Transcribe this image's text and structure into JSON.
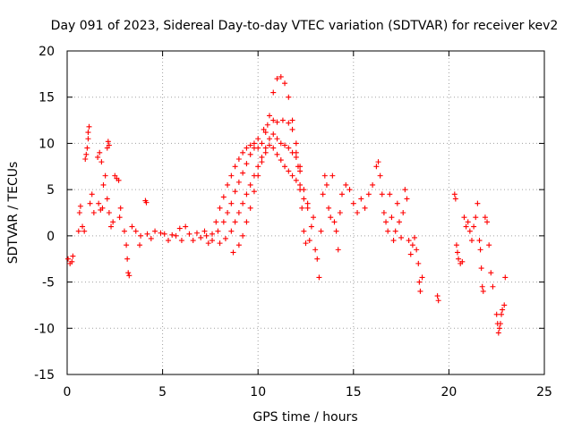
{
  "chart_data": {
    "type": "scatter",
    "title": "Day 091 of 2023, Sidereal Day-to-day VTEC variation (SDTVAR) for receiver kev2",
    "xlabel": "GPS time / hours",
    "ylabel": "SDTVAR / TECUs",
    "xlim": [
      0,
      25
    ],
    "ylim": [
      -15,
      20
    ],
    "xticks": [
      0,
      5,
      10,
      15,
      20,
      25
    ],
    "yticks": [
      -15,
      -10,
      -5,
      0,
      5,
      10,
      15,
      20
    ],
    "xtick_labels": [
      "0",
      "5",
      "10",
      "15",
      "20",
      "25"
    ],
    "ytick_labels": [
      "-15",
      "-10",
      "-5",
      "0",
      "5",
      "10",
      "15",
      "20"
    ],
    "grid": true,
    "marker": "plus",
    "color": "#ff0000",
    "series": [
      {
        "name": "SDTVAR",
        "points": [
          [
            0.05,
            -2.5
          ],
          [
            0.15,
            -3.0
          ],
          [
            0.25,
            -2.8
          ],
          [
            0.3,
            -2.2
          ],
          [
            0.6,
            0.5
          ],
          [
            0.65,
            2.5
          ],
          [
            0.7,
            3.2
          ],
          [
            0.8,
            1.0
          ],
          [
            0.9,
            0.5
          ],
          [
            0.95,
            8.3
          ],
          [
            1.0,
            8.8
          ],
          [
            1.05,
            9.5
          ],
          [
            1.1,
            11.2
          ],
          [
            1.15,
            11.8
          ],
          [
            1.1,
            10.5
          ],
          [
            1.2,
            3.5
          ],
          [
            1.3,
            4.5
          ],
          [
            1.4,
            2.5
          ],
          [
            1.6,
            8.5
          ],
          [
            1.7,
            9.0
          ],
          [
            1.8,
            8.0
          ],
          [
            1.65,
            3.5
          ],
          [
            1.75,
            2.8
          ],
          [
            1.85,
            3.0
          ],
          [
            1.9,
            5.5
          ],
          [
            2.0,
            6.5
          ],
          [
            2.1,
            9.5
          ],
          [
            2.15,
            10.2
          ],
          [
            2.2,
            9.8
          ],
          [
            2.1,
            4.0
          ],
          [
            2.2,
            2.5
          ],
          [
            2.3,
            1.0
          ],
          [
            2.4,
            1.5
          ],
          [
            2.5,
            6.5
          ],
          [
            2.6,
            6.2
          ],
          [
            2.7,
            6.0
          ],
          [
            2.75,
            2.0
          ],
          [
            2.8,
            3.0
          ],
          [
            3.0,
            0.5
          ],
          [
            3.1,
            -1.0
          ],
          [
            3.15,
            -2.5
          ],
          [
            3.2,
            -4.0
          ],
          [
            3.25,
            -4.3
          ],
          [
            3.4,
            1.0
          ],
          [
            3.6,
            0.5
          ],
          [
            3.8,
            -1.0
          ],
          [
            3.85,
            0.0
          ],
          [
            4.1,
            3.8
          ],
          [
            4.15,
            3.6
          ],
          [
            4.2,
            0.2
          ],
          [
            4.4,
            -0.3
          ],
          [
            4.6,
            0.5
          ],
          [
            4.9,
            0.3
          ],
          [
            5.1,
            0.2
          ],
          [
            5.3,
            -0.5
          ],
          [
            5.5,
            0.1
          ],
          [
            5.7,
            0.0
          ],
          [
            5.9,
            0.8
          ],
          [
            6.0,
            -0.5
          ],
          [
            6.2,
            1.0
          ],
          [
            6.4,
            0.2
          ],
          [
            6.6,
            -0.5
          ],
          [
            6.8,
            0.3
          ],
          [
            7.0,
            -0.2
          ],
          [
            7.2,
            0.5
          ],
          [
            7.4,
            -0.8
          ],
          [
            7.6,
            0.2
          ],
          [
            7.8,
            1.5
          ],
          [
            8.0,
            3.0
          ],
          [
            8.2,
            4.2
          ],
          [
            8.4,
            5.5
          ],
          [
            8.6,
            6.5
          ],
          [
            8.8,
            7.5
          ],
          [
            9.0,
            8.3
          ],
          [
            9.2,
            9.0
          ],
          [
            9.4,
            9.5
          ],
          [
            9.6,
            9.8
          ],
          [
            9.8,
            10.0
          ],
          [
            10.0,
            9.5
          ],
          [
            10.2,
            10.0
          ],
          [
            10.4,
            11.2
          ],
          [
            10.6,
            13.0
          ],
          [
            10.8,
            15.5
          ],
          [
            11.0,
            17.0
          ],
          [
            11.2,
            17.2
          ],
          [
            11.4,
            16.5
          ],
          [
            11.6,
            15.0
          ],
          [
            11.8,
            12.5
          ],
          [
            12.0,
            10.0
          ],
          [
            12.1,
            7.5
          ],
          [
            12.2,
            5.0
          ],
          [
            12.3,
            3.0
          ],
          [
            12.4,
            0.5
          ],
          [
            12.5,
            -0.8
          ],
          [
            7.3,
            0.0
          ],
          [
            7.6,
            -0.5
          ],
          [
            7.9,
            0.5
          ],
          [
            8.2,
            1.5
          ],
          [
            8.4,
            2.5
          ],
          [
            8.6,
            3.5
          ],
          [
            8.8,
            4.8
          ],
          [
            9.0,
            5.8
          ],
          [
            9.2,
            6.8
          ],
          [
            9.4,
            7.8
          ],
          [
            9.6,
            8.8
          ],
          [
            9.8,
            9.5
          ],
          [
            10.0,
            10.5
          ],
          [
            10.3,
            11.5
          ],
          [
            10.5,
            12.0
          ],
          [
            10.8,
            12.5
          ],
          [
            11.0,
            12.3
          ],
          [
            11.3,
            12.5
          ],
          [
            11.6,
            12.2
          ],
          [
            11.8,
            11.5
          ],
          [
            12.0,
            9.0
          ],
          [
            12.2,
            7.0
          ],
          [
            12.4,
            5.0
          ],
          [
            12.6,
            3.5
          ],
          [
            8.0,
            -0.8
          ],
          [
            8.3,
            -0.3
          ],
          [
            8.6,
            0.5
          ],
          [
            8.8,
            1.5
          ],
          [
            9.0,
            2.5
          ],
          [
            9.2,
            3.5
          ],
          [
            9.4,
            4.5
          ],
          [
            9.6,
            5.5
          ],
          [
            9.8,
            6.5
          ],
          [
            10.0,
            7.5
          ],
          [
            10.2,
            8.5
          ],
          [
            10.4,
            9.5
          ],
          [
            10.6,
            10.5
          ],
          [
            10.8,
            11.0
          ],
          [
            11.0,
            10.5
          ],
          [
            11.2,
            10.0
          ],
          [
            11.4,
            9.8
          ],
          [
            11.6,
            9.5
          ],
          [
            11.8,
            9.0
          ],
          [
            12.0,
            8.5
          ],
          [
            12.2,
            7.5
          ],
          [
            8.7,
            -1.8
          ],
          [
            9.0,
            -1.0
          ],
          [
            9.2,
            0.0
          ],
          [
            9.4,
            1.5
          ],
          [
            9.6,
            3.0
          ],
          [
            9.8,
            4.8
          ],
          [
            10.0,
            6.5
          ],
          [
            10.2,
            8.0
          ],
          [
            10.4,
            9.0
          ],
          [
            10.6,
            9.8
          ],
          [
            10.8,
            9.5
          ],
          [
            11.0,
            8.8
          ],
          [
            11.2,
            8.2
          ],
          [
            11.4,
            7.5
          ],
          [
            11.6,
            7.0
          ],
          [
            11.8,
            6.5
          ],
          [
            12.0,
            6.0
          ],
          [
            12.2,
            5.5
          ],
          [
            12.4,
            4.0
          ],
          [
            12.6,
            3.0
          ],
          [
            12.7,
            -0.5
          ],
          [
            12.8,
            1.0
          ],
          [
            12.9,
            2.0
          ],
          [
            13.0,
            -1.5
          ],
          [
            13.1,
            -2.5
          ],
          [
            13.2,
            -4.5
          ],
          [
            13.3,
            0.5
          ],
          [
            13.4,
            4.5
          ],
          [
            13.5,
            6.5
          ],
          [
            13.6,
            5.5
          ],
          [
            13.7,
            3.0
          ],
          [
            13.8,
            2.0
          ],
          [
            13.9,
            6.5
          ],
          [
            14.0,
            1.5
          ],
          [
            14.1,
            0.5
          ],
          [
            14.2,
            -1.5
          ],
          [
            14.3,
            2.5
          ],
          [
            14.4,
            4.5
          ],
          [
            14.6,
            5.5
          ],
          [
            14.8,
            5.0
          ],
          [
            15.0,
            3.5
          ],
          [
            15.2,
            2.5
          ],
          [
            15.4,
            4.0
          ],
          [
            15.6,
            3.0
          ],
          [
            15.8,
            4.5
          ],
          [
            16.0,
            5.5
          ],
          [
            16.2,
            7.5
          ],
          [
            16.3,
            8.0
          ],
          [
            16.4,
            6.5
          ],
          [
            16.5,
            4.5
          ],
          [
            16.6,
            2.5
          ],
          [
            16.7,
            1.5
          ],
          [
            16.8,
            0.5
          ],
          [
            16.9,
            4.5
          ],
          [
            17.0,
            2.0
          ],
          [
            17.1,
            -0.5
          ],
          [
            17.2,
            0.5
          ],
          [
            17.3,
            3.5
          ],
          [
            17.4,
            1.5
          ],
          [
            17.5,
            -0.2
          ],
          [
            17.6,
            2.5
          ],
          [
            17.7,
            5.0
          ],
          [
            17.8,
            4.0
          ],
          [
            17.9,
            -0.5
          ],
          [
            18.0,
            -2.0
          ],
          [
            18.1,
            -1.0
          ],
          [
            18.2,
            -0.2
          ],
          [
            18.3,
            -1.5
          ],
          [
            18.4,
            -3.0
          ],
          [
            18.45,
            -5.0
          ],
          [
            18.5,
            -6.0
          ],
          [
            18.6,
            -4.5
          ],
          [
            19.4,
            -6.5
          ],
          [
            19.45,
            -7.0
          ],
          [
            20.3,
            4.5
          ],
          [
            20.35,
            4.0
          ],
          [
            20.4,
            -1.0
          ],
          [
            20.45,
            -1.8
          ],
          [
            20.5,
            -2.5
          ],
          [
            20.6,
            -3.0
          ],
          [
            20.7,
            -2.8
          ],
          [
            20.8,
            2.0
          ],
          [
            20.9,
            1.0
          ],
          [
            21.0,
            1.5
          ],
          [
            21.1,
            0.5
          ],
          [
            21.2,
            -0.5
          ],
          [
            21.3,
            1.0
          ],
          [
            21.4,
            2.0
          ],
          [
            21.5,
            3.5
          ],
          [
            21.6,
            -0.5
          ],
          [
            21.65,
            -1.5
          ],
          [
            21.7,
            -3.5
          ],
          [
            21.75,
            -5.5
          ],
          [
            21.8,
            -6.0
          ],
          [
            21.9,
            2.0
          ],
          [
            22.0,
            1.5
          ],
          [
            22.1,
            -1.0
          ],
          [
            22.2,
            -4.0
          ],
          [
            22.3,
            -5.5
          ],
          [
            22.5,
            -8.5
          ],
          [
            22.55,
            -9.5
          ],
          [
            22.6,
            -10.5
          ],
          [
            22.65,
            -10.0
          ],
          [
            22.7,
            -9.5
          ],
          [
            22.75,
            -8.5
          ],
          [
            22.8,
            -8.0
          ],
          [
            22.9,
            -7.5
          ],
          [
            22.95,
            -4.5
          ]
        ]
      }
    ]
  }
}
